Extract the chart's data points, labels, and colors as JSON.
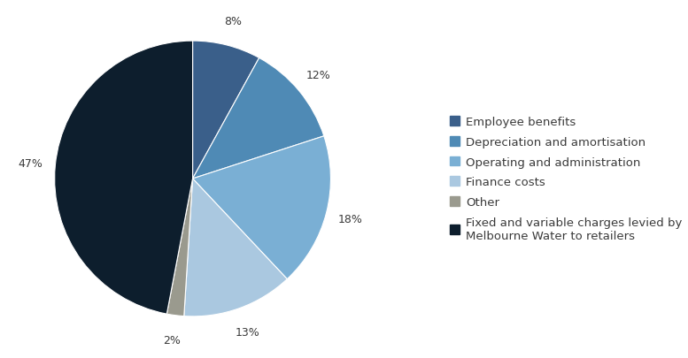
{
  "labels": [
    "Employee benefits",
    "Depreciation and amortisation",
    "Operating and administration",
    "Finance costs",
    "Other",
    "Fixed and variable charges levied by\nMelbourne Water to retailers"
  ],
  "values": [
    8,
    12,
    18,
    13,
    2,
    47
  ],
  "colors": [
    "#3a5f8a",
    "#4f8ab5",
    "#7aafd4",
    "#aac8e0",
    "#9a9a8e",
    "#0d1e2d"
  ],
  "pct_labels": [
    "8%",
    "12%",
    "18%",
    "13%",
    "2%",
    "47%"
  ],
  "startangle": 90,
  "background_color": "#ffffff",
  "text_color": "#3a3a3a",
  "font_size": 9.5,
  "pct_font_size": 9
}
